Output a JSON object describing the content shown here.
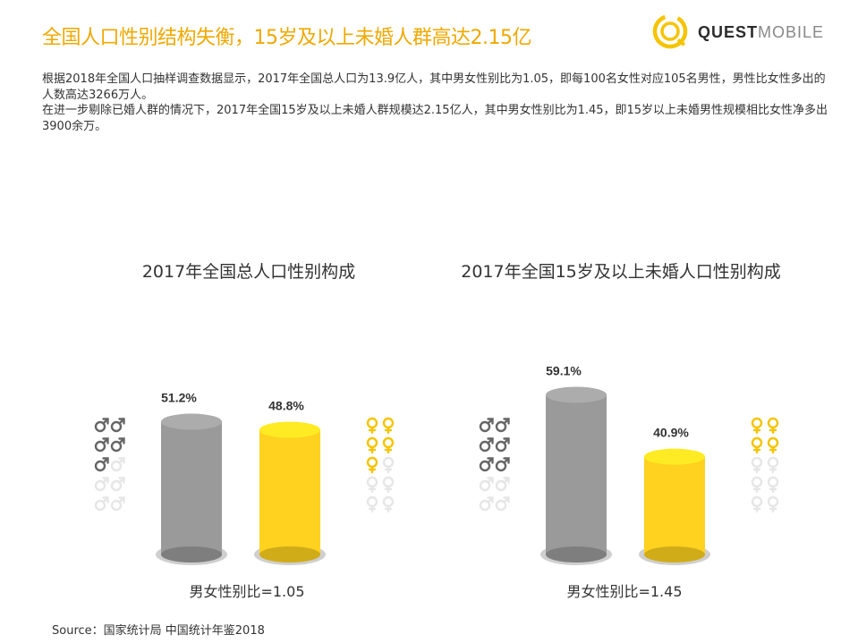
{
  "title": "全国人口性别结构失衡，15岁及以上未婚人群高达2.15亿",
  "logo": {
    "bold": "QUEST",
    "light": "MOBILE"
  },
  "intro": [
    "根据2018年全国人口抽样调查数据显示，2017年全国总人口为13.9亿人，其中男女性别比为1.05，即每100名女性对应105名男性，男性比女性多出的人数高达3266万人。",
    "在进一步剔除已婚人群的情况下，2017年全国15岁及以上未婚人群规模达2.15亿人，其中男女性别比为1.45，即15岁以上未婚男性规模相比女性净多出3900余万。"
  ],
  "source": "Source：国家统计局 中国统计年鉴2018",
  "colors": {
    "male": "#9A9A9A",
    "female": "#FFD21F",
    "title": "#F0A800",
    "icon_male": "#666666",
    "icon_female": "#F5C400",
    "icon_faded": "#E6E6E6"
  },
  "chart_data": [
    {
      "type": "bar",
      "title": "2017年全国总人口性别构成",
      "categories": [
        "男",
        "女"
      ],
      "values": [
        51.2,
        48.8
      ],
      "value_labels": [
        "51.2%",
        "48.8%"
      ],
      "ratio_label": "男女性别比=1.05",
      "ylim": [
        0,
        100
      ],
      "icons": {
        "male_filled": 5,
        "female_filled": 5,
        "total": 10
      }
    },
    {
      "type": "bar",
      "title": "2017年全国15岁及以上未婚人口性别构成",
      "categories": [
        "男",
        "女"
      ],
      "values": [
        59.1,
        40.9
      ],
      "value_labels": [
        "59.1%",
        "40.9%"
      ],
      "ratio_label": "男女性别比=1.45",
      "ylim": [
        0,
        100
      ],
      "icons": {
        "male_filled": 6,
        "female_filled": 4,
        "total": 10
      }
    }
  ]
}
